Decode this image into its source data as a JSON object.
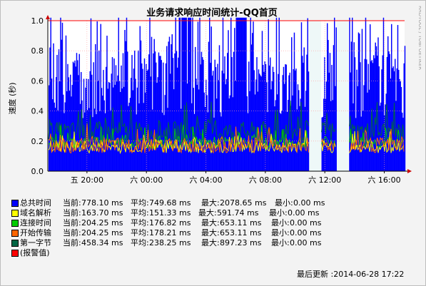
{
  "chart_data": {
    "type": "area",
    "title": "业务请求响应时间统计-QQ首页",
    "ylabel": "速度 (秒)",
    "xlabel": "",
    "ylim": [
      0,
      1.0
    ],
    "yticks": [
      "0.0",
      "0.2",
      "0.4",
      "0.6",
      "0.8",
      "1.0"
    ],
    "xticks": [
      "五 20:00",
      "六 00:00",
      "六 04:00",
      "六 08:00",
      "六 12:00",
      "六 16:00"
    ],
    "x_range": [
      "五 17:22",
      "六 17:22"
    ],
    "threshold_line": 1.0,
    "gap_intervals": [
      [
        "六 10:55",
        "六 11:45"
      ],
      [
        "六 12:45",
        "六 13:35"
      ]
    ],
    "grid": true,
    "legend_placement": "bottom",
    "series": [
      {
        "name": "总共时间",
        "color": "#0000ff",
        "current": "778.10 ms",
        "average": "749.68 ms",
        "max": "2078.65 ms",
        "min": "0.00 ms"
      },
      {
        "name": "域名解析",
        "color": "#ffff00",
        "current": "163.70 ms",
        "average": "151.33 ms",
        "max": "591.74 ms",
        "min": "0.00 ms"
      },
      {
        "name": "连接时间",
        "color": "#00cc00",
        "current": "204.25 ms",
        "average": "176.82 ms",
        "max": "653.11 ms",
        "min": "0.00 ms"
      },
      {
        "name": "开始传输",
        "color": "#ff6600",
        "current": "204.25 ms",
        "average": "178.21 ms",
        "max": "653.11 ms",
        "min": "0.00 ms"
      },
      {
        "name": "第一字节",
        "color": "#006644",
        "current": "458.34 ms",
        "average": "238.25 ms",
        "max": "897.23 ms",
        "min": "0.00 ms"
      },
      {
        "name": "(报警值)",
        "color": "#ff0000"
      }
    ]
  },
  "legend": {
    "current_prefix": "当前:",
    "average_prefix": "平均:",
    "max_prefix": "最大:",
    "min_prefix": "最小:"
  },
  "footer": {
    "last_update": "最后更新 :2014-06-28 17:22"
  },
  "watermark": "RRDTOOL / TOBI OETIKER",
  "colors": {
    "background": "#f3f3f3",
    "plot_background": "#ffffff",
    "threshold": "#ff0000",
    "grid": "#ff9b9b",
    "axis": "#000000"
  }
}
